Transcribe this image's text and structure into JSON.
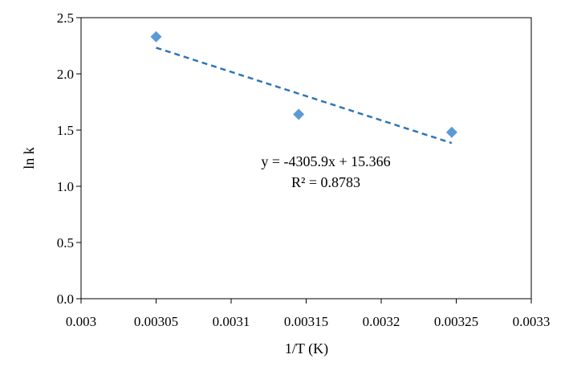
{
  "chart_data": {
    "type": "scatter",
    "title": "",
    "xlabel": "1/T (K)",
    "ylabel": "ln k",
    "xlim": [
      0.003,
      0.0033
    ],
    "ylim": [
      0.0,
      2.5
    ],
    "x_ticks": [
      {
        "value": 0.003,
        "label": "0.003"
      },
      {
        "value": 0.00305,
        "label": "0.00305"
      },
      {
        "value": 0.0031,
        "label": "0.0031"
      },
      {
        "value": 0.00315,
        "label": "0.00315"
      },
      {
        "value": 0.0032,
        "label": "0.0032"
      },
      {
        "value": 0.00325,
        "label": "0.00325"
      },
      {
        "value": 0.0033,
        "label": "0.0033"
      }
    ],
    "y_ticks": [
      {
        "value": 0.0,
        "label": "0.0"
      },
      {
        "value": 0.5,
        "label": "0.5"
      },
      {
        "value": 1.0,
        "label": "1.0"
      },
      {
        "value": 1.5,
        "label": "1.5"
      },
      {
        "value": 2.0,
        "label": "2.0"
      },
      {
        "value": 2.5,
        "label": "2.5"
      }
    ],
    "grid": false,
    "series": [
      {
        "marker": "diamond",
        "color": "#5B9BD5",
        "x": [
          0.00305,
          0.003145,
          0.003247
        ],
        "y": [
          2.33,
          1.64,
          1.48
        ]
      }
    ],
    "trendline": {
      "type": "linear",
      "style": "dashed",
      "color": "#2E75B6",
      "slope": -4305.9,
      "intercept": 15.366,
      "x_range": [
        0.00305,
        0.003247
      ],
      "equation": "y = -4305.9x + 15.366",
      "r_squared": "R² = 0.8783"
    }
  }
}
